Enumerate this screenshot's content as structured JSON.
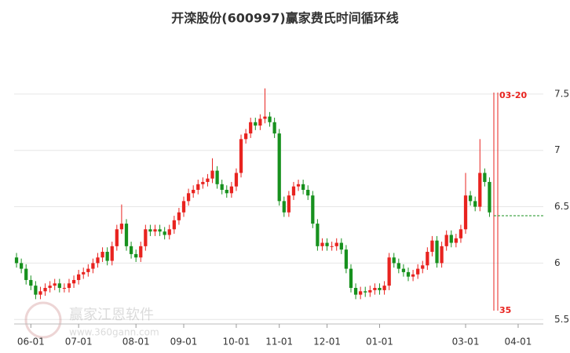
{
  "chart_data": {
    "type": "candlestick",
    "title": "开滦股份(600997)赢家费氏时间循环线",
    "categories": [
      null,
      null,
      null,
      "06-01",
      null,
      null,
      null,
      null,
      null,
      null,
      null,
      null,
      null,
      "07-01",
      null,
      null,
      null,
      null,
      null,
      null,
      null,
      null,
      null,
      null,
      null,
      "08-01",
      null,
      null,
      null,
      null,
      null,
      null,
      null,
      null,
      null,
      "09-01",
      null,
      null,
      null,
      null,
      null,
      null,
      null,
      null,
      null,
      null,
      "10-01",
      null,
      null,
      null,
      null,
      null,
      null,
      null,
      null,
      "11-01",
      null,
      null,
      null,
      null,
      null,
      null,
      null,
      null,
      null,
      "12-01",
      null,
      null,
      null,
      null,
      null,
      null,
      null,
      null,
      null,
      null,
      "01-01",
      null,
      null,
      null,
      null,
      null,
      null,
      null,
      null,
      null,
      null,
      null,
      null,
      null,
      null,
      null,
      null,
      null,
      "03-01",
      null,
      null,
      null,
      null,
      null,
      null,
      null,
      null,
      null,
      null,
      "04-01"
    ],
    "open": [
      6.05,
      6.0,
      5.95,
      5.85,
      5.8,
      5.72,
      5.75,
      5.78,
      5.8,
      5.82,
      5.78,
      5.78,
      5.82,
      5.85,
      5.9,
      5.92,
      5.95,
      6.0,
      6.05,
      6.1,
      6.02,
      6.15,
      6.3,
      6.35,
      6.15,
      6.08,
      6.05,
      6.15,
      6.3,
      6.28,
      6.3,
      6.28,
      6.25,
      6.3,
      6.38,
      6.45,
      6.55,
      6.62,
      6.65,
      6.7,
      6.72,
      6.75,
      6.82,
      6.7,
      6.65,
      6.62,
      6.68,
      6.8,
      7.1,
      7.15,
      7.25,
      7.22,
      7.28,
      7.3,
      7.25,
      7.15,
      6.55,
      6.45,
      6.6,
      6.68,
      6.7,
      6.65,
      6.6,
      6.35,
      6.15,
      6.18,
      6.15,
      6.15,
      6.18,
      6.12,
      5.95,
      5.78,
      5.72,
      5.75,
      5.74,
      5.76,
      5.78,
      5.76,
      5.8,
      6.05,
      6.0,
      5.95,
      5.92,
      5.88,
      5.9,
      5.95,
      5.98,
      6.1,
      6.2,
      6.0,
      6.15,
      6.25,
      6.18,
      6.22,
      6.3,
      6.6,
      6.55,
      6.5,
      6.8,
      6.72,
      null,
      null,
      null,
      null,
      null,
      null
    ],
    "high": [
      6.09,
      6.04,
      5.99,
      5.89,
      5.84,
      5.79,
      5.82,
      5.84,
      5.86,
      5.86,
      5.82,
      5.86,
      5.89,
      5.94,
      5.96,
      5.99,
      6.04,
      6.09,
      6.14,
      6.14,
      6.19,
      6.34,
      6.52,
      6.39,
      6.19,
      6.12,
      6.19,
      6.34,
      6.34,
      6.34,
      6.34,
      6.32,
      6.34,
      6.42,
      6.49,
      6.59,
      6.66,
      6.69,
      6.74,
      6.76,
      6.79,
      6.93,
      6.86,
      6.74,
      6.69,
      6.72,
      6.84,
      7.14,
      7.19,
      7.29,
      7.29,
      7.32,
      7.55,
      7.34,
      7.29,
      7.19,
      6.59,
      6.64,
      6.72,
      6.74,
      6.74,
      6.69,
      6.64,
      6.39,
      6.22,
      6.22,
      6.19,
      6.22,
      6.22,
      6.16,
      5.99,
      5.82,
      5.79,
      5.79,
      5.8,
      5.82,
      5.82,
      5.84,
      6.09,
      6.09,
      6.04,
      5.99,
      5.96,
      5.94,
      5.99,
      6.02,
      6.14,
      6.24,
      6.24,
      6.19,
      6.29,
      6.29,
      6.26,
      6.34,
      6.8,
      6.64,
      6.59,
      7.1,
      6.84,
      6.76,
      null,
      null,
      null,
      null,
      null,
      null
    ],
    "low": [
      5.96,
      5.91,
      5.81,
      5.76,
      5.68,
      5.68,
      5.71,
      5.74,
      5.76,
      5.74,
      5.74,
      5.74,
      5.78,
      5.81,
      5.86,
      5.88,
      5.91,
      5.96,
      6.01,
      5.98,
      5.98,
      6.11,
      6.26,
      6.11,
      6.04,
      6.01,
      6.01,
      6.11,
      6.24,
      6.24,
      6.24,
      6.21,
      6.21,
      6.26,
      6.34,
      6.41,
      6.51,
      6.58,
      6.61,
      6.66,
      6.68,
      6.71,
      6.66,
      6.61,
      6.58,
      6.58,
      6.64,
      6.76,
      7.06,
      7.11,
      7.18,
      7.18,
      7.24,
      7.21,
      7.11,
      6.51,
      6.41,
      6.41,
      6.56,
      6.64,
      6.61,
      6.56,
      6.31,
      6.11,
      6.11,
      6.11,
      6.11,
      6.11,
      6.08,
      5.91,
      5.74,
      5.68,
      5.68,
      5.7,
      5.7,
      5.72,
      5.72,
      5.72,
      5.76,
      5.96,
      5.91,
      5.88,
      5.84,
      5.84,
      5.86,
      5.91,
      5.94,
      6.06,
      5.96,
      5.96,
      6.11,
      6.14,
      6.14,
      6.18,
      6.26,
      6.51,
      6.46,
      6.46,
      6.68,
      6.41,
      null,
      null,
      null,
      null,
      null,
      null
    ],
    "close": [
      6.0,
      5.95,
      5.85,
      5.8,
      5.72,
      5.75,
      5.78,
      5.8,
      5.82,
      5.78,
      5.78,
      5.82,
      5.85,
      5.9,
      5.92,
      5.95,
      6.0,
      6.05,
      6.1,
      6.02,
      6.15,
      6.3,
      6.35,
      6.15,
      6.08,
      6.05,
      6.15,
      6.3,
      6.28,
      6.3,
      6.28,
      6.25,
      6.3,
      6.38,
      6.45,
      6.55,
      6.62,
      6.65,
      6.7,
      6.72,
      6.75,
      6.82,
      6.7,
      6.65,
      6.62,
      6.68,
      6.8,
      7.1,
      7.15,
      7.25,
      7.22,
      7.28,
      7.3,
      7.25,
      7.15,
      6.55,
      6.45,
      6.6,
      6.68,
      6.7,
      6.65,
      6.6,
      6.35,
      6.15,
      6.18,
      6.15,
      6.15,
      6.18,
      6.12,
      5.95,
      5.78,
      5.72,
      5.75,
      5.74,
      5.76,
      5.78,
      5.76,
      5.8,
      6.05,
      6.0,
      5.95,
      5.92,
      5.88,
      5.9,
      5.95,
      5.98,
      6.1,
      6.2,
      6.0,
      6.15,
      6.25,
      6.18,
      6.22,
      6.3,
      6.6,
      6.55,
      6.5,
      6.8,
      6.72,
      6.45,
      null,
      null,
      null,
      null,
      null,
      null
    ],
    "up_color": "#e8231f",
    "down_color": "#17911e",
    "ylim": [
      5.46,
      8.0
    ],
    "yticks": [
      5.5,
      {
        "value": 6,
        "label": "6"
      },
      6.5,
      {
        "value": 7,
        "label": "7"
      },
      7.5
    ],
    "grid": true,
    "reference_line": 6.42,
    "reference_color": "#17911e",
    "annotations": [
      {
        "label": "03-20"
      },
      {
        "label": "35"
      }
    ],
    "watermark": "赢家江恩软件",
    "watermark_url": "www.360gann.com"
  }
}
